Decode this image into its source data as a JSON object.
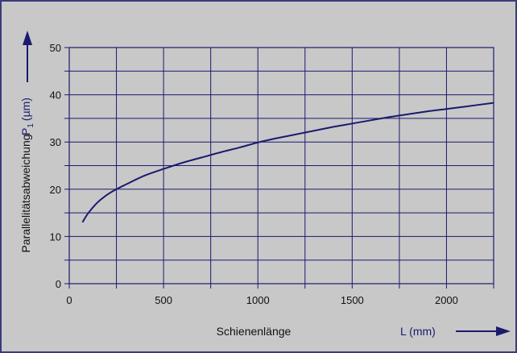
{
  "chart_data": {
    "type": "line",
    "title": "",
    "xlabel": "Schienenlänge",
    "xlabel_right": "L (mm)",
    "ylabel": "Parallelitätsabweichung",
    "ylabel_symbol": "P",
    "ylabel_subscript": "1",
    "ylabel_unit": "(µm)",
    "xlim": [
      0,
      2250
    ],
    "ylim": [
      0,
      50
    ],
    "xticks": [
      0,
      500,
      1000,
      1500,
      2000
    ],
    "yticks": [
      0,
      10,
      20,
      30,
      40,
      50
    ],
    "grid": true,
    "colors": {
      "background": "#c8c8c8",
      "ink": "#1a1a6e",
      "frame": "#3a3a7a"
    },
    "series": [
      {
        "x": [
          70,
          100,
          150,
          200,
          250,
          300,
          400,
          500,
          600,
          700,
          800,
          900,
          1000,
          1100,
          1200,
          1300,
          1400,
          1500,
          1600,
          1700,
          1800,
          1900,
          2000,
          2100,
          2250
        ],
        "values": [
          13.0,
          14.9,
          17.2,
          18.8,
          20.0,
          21.0,
          22.9,
          24.3,
          25.6,
          26.7,
          27.8,
          28.8,
          29.9,
          30.8,
          31.6,
          32.4,
          33.2,
          33.9,
          34.6,
          35.3,
          35.9,
          36.5,
          37.0,
          37.5,
          38.3
        ]
      }
    ]
  }
}
